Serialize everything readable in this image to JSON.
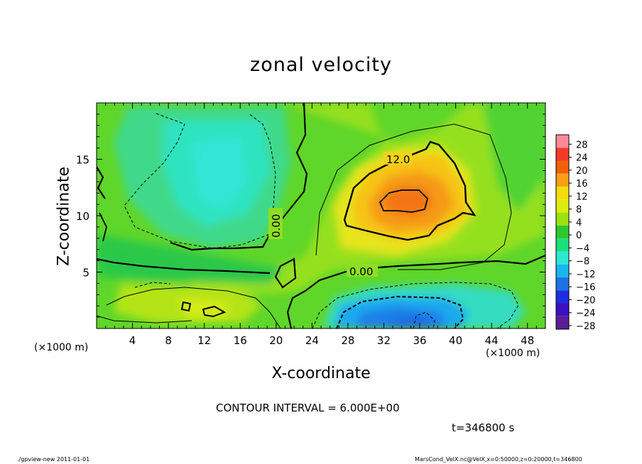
{
  "chart_data": {
    "type": "heatmap",
    "title": "zonal velocity",
    "xlabel": "X-coordinate",
    "ylabel": "Z-coordinate",
    "x_unit": "(×1000 m)",
    "xlim": [
      0,
      50
    ],
    "ylim": [
      0,
      20
    ],
    "x_ticks": [
      "4",
      "8",
      "12",
      "16",
      "20",
      "24",
      "28",
      "32",
      "36",
      "40",
      "44",
      "48"
    ],
    "y_ticks": [
      "5",
      "10",
      "15"
    ],
    "colorbar": {
      "levels": [
        "28",
        "24",
        "20",
        "16",
        "12",
        "8",
        "4",
        "0",
        "−4",
        "−8",
        "−12",
        "−16",
        "−20",
        "−24",
        "−28"
      ],
      "colors": [
        "#ff8a9a",
        "#f53a2a",
        "#f4600a",
        "#f7a015",
        "#f3dd0a",
        "#ddec10",
        "#9be20e",
        "#2ec82e",
        "#1ce07a",
        "#2de8d2",
        "#19b5ef",
        "#1d72e6",
        "#1e2ee0",
        "#3a10c0",
        "#5b1c96"
      ]
    },
    "contour_labels": [
      "12.0",
      "0.00",
      "0.00"
    ],
    "contour_interval": "CONTOUR INTERVAL = 6.000E+00",
    "time": "t=346800 s"
  },
  "footer": {
    "left": "./gpview-new  2011-01-01",
    "right": "MarsCond_VelX.nc@VelX,x=0:50000,z=0:20000,t=346800"
  }
}
